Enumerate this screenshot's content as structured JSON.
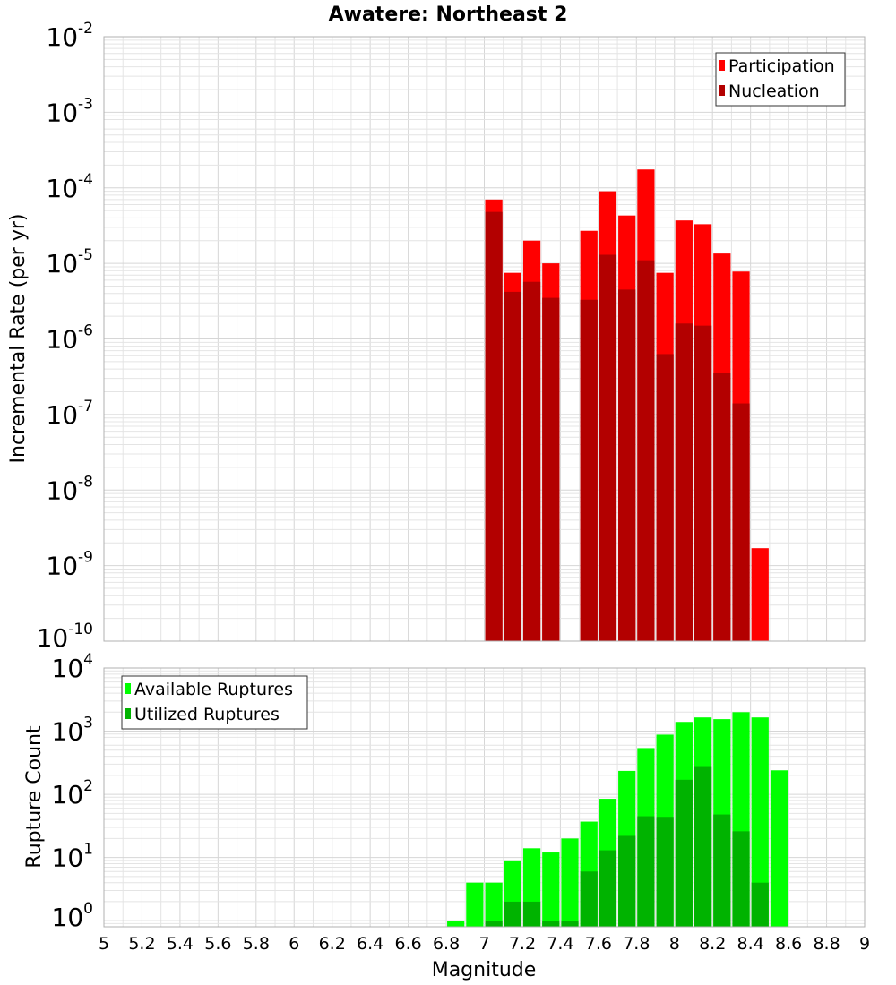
{
  "chart_data": [
    {
      "type": "bar",
      "title": "Awatere: Northeast 2",
      "xlabel": "Magnitude",
      "ylabel": "Incremental Rate (per yr)",
      "x_scale": "linear",
      "xlim": [
        5,
        9
      ],
      "y_scale": "log",
      "ylim": [
        1e-10,
        0.01
      ],
      "y_tick_labels": [
        {
          "base": "10",
          "exp": "-10"
        },
        {
          "base": "10",
          "exp": "-9"
        },
        {
          "base": "10",
          "exp": "-8"
        },
        {
          "base": "10",
          "exp": "-7"
        },
        {
          "base": "10",
          "exp": "-6"
        },
        {
          "base": "10",
          "exp": "-5"
        },
        {
          "base": "10",
          "exp": "-4"
        },
        {
          "base": "10",
          "exp": "-3"
        },
        {
          "base": "10",
          "exp": "-2"
        }
      ],
      "bin_width": 0.1,
      "grid": true,
      "legend_position": "top-right",
      "series": [
        {
          "name": "Participation",
          "color": "#ff0000",
          "x": [
            7.05,
            7.15,
            7.25,
            7.35,
            7.55,
            7.65,
            7.75,
            7.85,
            7.95,
            8.05,
            8.15,
            8.25,
            8.35,
            8.45
          ],
          "values": [
            7e-05,
            7.5e-06,
            2e-05,
            1e-05,
            2.7e-05,
            9e-05,
            4.3e-05,
            0.000175,
            7.5e-06,
            3.7e-05,
            3.3e-05,
            1.35e-05,
            7.8e-06,
            1.7e-09
          ]
        },
        {
          "name": "Nucleation",
          "color": "#b30000",
          "x": [
            7.05,
            7.15,
            7.25,
            7.35,
            7.55,
            7.65,
            7.75,
            7.85,
            7.95,
            8.05,
            8.15,
            8.25,
            8.35
          ],
          "values": [
            4.8e-05,
            4.2e-06,
            5.7e-06,
            3.5e-06,
            3.3e-06,
            1.3e-05,
            4.5e-06,
            1.1e-05,
            6.3e-07,
            1.6e-06,
            1.5e-06,
            3.5e-07,
            1.4e-07
          ]
        }
      ]
    },
    {
      "type": "bar",
      "title": "",
      "xlabel": "Magnitude",
      "ylabel": "Rupture Count",
      "x_scale": "linear",
      "xlim": [
        5,
        9
      ],
      "x_tick_labels": [
        "5",
        "5.2",
        "5.4",
        "5.6",
        "5.8",
        "6",
        "6.2",
        "6.4",
        "6.6",
        "6.8",
        "7",
        "7.2",
        "7.4",
        "7.6",
        "7.8",
        "8",
        "8.2",
        "8.4",
        "8.6",
        "8.8",
        "9"
      ],
      "y_scale": "log",
      "ylim": [
        0.8,
        10000
      ],
      "y_tick_labels": [
        {
          "base": "10",
          "exp": "0"
        },
        {
          "base": "10",
          "exp": "1"
        },
        {
          "base": "10",
          "exp": "2"
        },
        {
          "base": "10",
          "exp": "3"
        },
        {
          "base": "10",
          "exp": "4"
        }
      ],
      "bin_width": 0.1,
      "grid": true,
      "legend_position": "top-left",
      "series": [
        {
          "name": "Available Ruptures",
          "color": "#00ff00",
          "x": [
            6.85,
            6.95,
            7.05,
            7.15,
            7.25,
            7.35,
            7.45,
            7.55,
            7.65,
            7.75,
            7.85,
            7.95,
            8.05,
            8.15,
            8.25,
            8.35,
            8.45,
            8.55
          ],
          "values": [
            1,
            4,
            4,
            9,
            14,
            12,
            20,
            37,
            85,
            235,
            540,
            880,
            1400,
            1650,
            1550,
            2000,
            1650,
            240
          ]
        },
        {
          "name": "Utilized Ruptures",
          "color": "#00b300",
          "x": [
            7.05,
            7.15,
            7.25,
            7.35,
            7.45,
            7.55,
            7.65,
            7.75,
            7.85,
            7.95,
            8.05,
            8.15,
            8.25,
            8.35,
            8.45
          ],
          "values": [
            1,
            2,
            2,
            1,
            1,
            6,
            13,
            22,
            45,
            44,
            170,
            280,
            48,
            26,
            4
          ]
        }
      ]
    }
  ]
}
